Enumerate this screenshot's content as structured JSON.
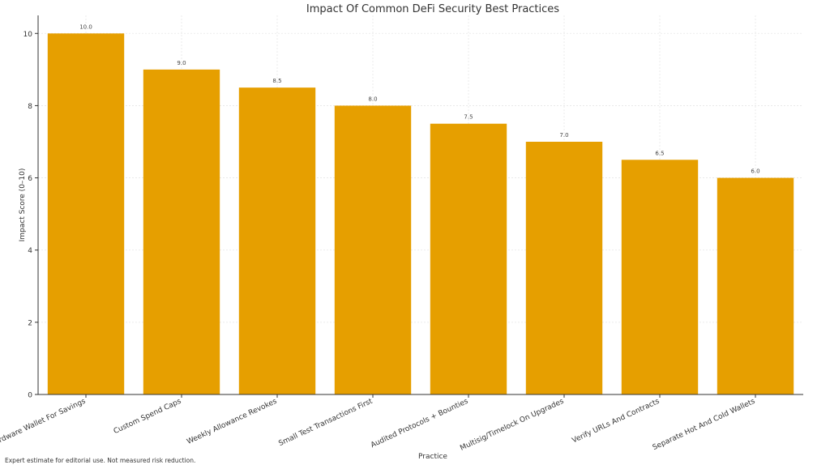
{
  "chart_data": {
    "type": "bar",
    "title": "Impact Of Common DeFi Security Best Practices",
    "xlabel": "Practice",
    "ylabel": "Impact Score (0–10)",
    "categories": [
      "Hardware Wallet For Savings",
      "Custom Spend Caps",
      "Weekly Allowance Revokes",
      "Small Test Transactions First",
      "Audited Protocols + Bounties",
      "Multisig/Timelock On Upgrades",
      "Verify URLs And Contracts",
      "Separate Hot And Cold Wallets"
    ],
    "values": [
      10.0,
      9.0,
      8.5,
      8.0,
      7.5,
      7.0,
      6.5,
      6.0
    ],
    "data_labels": [
      "10.0",
      "9.0",
      "8.5",
      "8.0",
      "7.5",
      "7.0",
      "6.5",
      "6.0"
    ],
    "ylim": [
      0,
      10.5
    ],
    "yticks": [
      0,
      2,
      4,
      6,
      8,
      10
    ],
    "grid": true,
    "bar_color": "#E69F00",
    "gridline_color": "#e6e6e6"
  },
  "footnote": "Expert estimate for editorial use. Not measured risk reduction."
}
